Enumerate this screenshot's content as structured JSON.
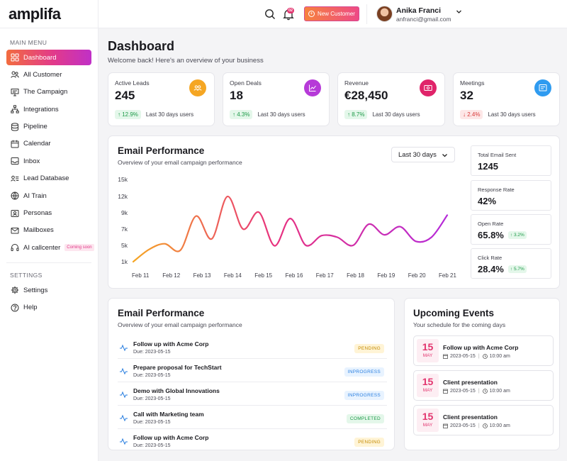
{
  "app": {
    "logo": "amplifa"
  },
  "sidebar": {
    "main_heading": "MAIN MENU",
    "items": [
      {
        "label": "Dashboard",
        "icon": "grid-icon",
        "active": true
      },
      {
        "label": "All Customer",
        "icon": "users-icon"
      },
      {
        "label": "The Campaign",
        "icon": "presentation-icon"
      },
      {
        "label": "Integrations",
        "icon": "hierarchy-icon"
      },
      {
        "label": "Pipeline",
        "icon": "database-icon"
      },
      {
        "label": "Calendar",
        "icon": "calendar-icon"
      },
      {
        "label": "Inbox",
        "icon": "inbox-icon"
      },
      {
        "label": "Lead Database",
        "icon": "user-list-icon"
      },
      {
        "label": "AI Train",
        "icon": "network-icon"
      },
      {
        "label": "Personas",
        "icon": "id-card-icon"
      },
      {
        "label": "Mailboxes",
        "icon": "mail-icon"
      },
      {
        "label": "AI callcenter",
        "icon": "headset-icon",
        "badge": "Coming soon"
      }
    ],
    "settings_heading": "SETTINGS",
    "settings_items": [
      {
        "label": "Settings",
        "icon": "gear-icon"
      },
      {
        "label": "Help",
        "icon": "help-icon"
      }
    ]
  },
  "topbar": {
    "notification_count": "02",
    "new_customer_label": "New Customer",
    "user_name": "Anika Franci",
    "user_email": "anfranci@gmail.com"
  },
  "header": {
    "title": "Dashboard",
    "subtitle": "Welcome back! Here's an overview of your business"
  },
  "stats": [
    {
      "label": "Active Leads",
      "value": "245",
      "change": "12.9%",
      "direction": "up",
      "period": "Last 30 days users",
      "icon": "people-icon",
      "color": "#f5a623"
    },
    {
      "label": "Open Deals",
      "value": "18",
      "change": "4.3%",
      "direction": "up",
      "period": "Last 30 days users",
      "icon": "chart-icon",
      "color": "#b63ad8"
    },
    {
      "label": "Revenue",
      "value": "€28,450",
      "change": "8.7%",
      "direction": "up",
      "period": "Last 30 days users",
      "icon": "money-icon",
      "color": "#e0246a"
    },
    {
      "label": "Meetings",
      "value": "32",
      "change": "2.4%",
      "direction": "down",
      "period": "Last 30 days users",
      "icon": "board-icon",
      "color": "#2f9bf0"
    }
  ],
  "performance": {
    "title": "Email Performance",
    "subtitle": "Overview of your email campaign performance",
    "range": "Last 30 days",
    "metrics": [
      {
        "label": "Total Email Sent",
        "value": "1245",
        "change": ""
      },
      {
        "label": "Response Rate",
        "value": "42%",
        "change": ""
      },
      {
        "label": "Open Rate",
        "value": "65.8%",
        "change": "3.2%"
      },
      {
        "label": "Click Rate",
        "value": "28.4%",
        "change": "5.7%"
      }
    ]
  },
  "chart_data": {
    "type": "line",
    "categories": [
      "Feb 11",
      "Feb 12",
      "Feb 13",
      "Feb 14",
      "Feb 15",
      "Feb 16",
      "Feb 17",
      "Feb 18",
      "Feb 19",
      "Feb 20",
      "Feb 21"
    ],
    "x": [
      0,
      0.5,
      1,
      1.5,
      2,
      2.5,
      3,
      3.5,
      4,
      4.5,
      5,
      5.5,
      6,
      6.5,
      7,
      7.5,
      8,
      8.5,
      9,
      9.5,
      10
    ],
    "values": [
      1000,
      4000,
      5200,
      3800,
      8600,
      5800,
      12000,
      7000,
      9100,
      4900,
      8300,
      5000,
      6200,
      6000,
      5000,
      7600,
      6300,
      7300,
      5500,
      6000,
      8700
    ],
    "y_ticks": [
      "1k",
      "5k",
      "7k",
      "9k",
      "12k",
      "15k"
    ],
    "ylim": [
      1000,
      15000
    ],
    "gradient": [
      "#f5a623",
      "#e8317e",
      "#b52ad9"
    ],
    "grid": false,
    "legend": "none"
  },
  "tasks": {
    "title": "Email Performance",
    "subtitle": "Overview of your email campaign performance",
    "items": [
      {
        "title": "Follow up with Acme Corp",
        "due": "Due: 2023-05-15",
        "status": "PENDING",
        "kind": "pending"
      },
      {
        "title": "Prepare proposal for TechStart",
        "due": "Due: 2023-05-15",
        "status": "INPROGRESS",
        "kind": "inprogress"
      },
      {
        "title": "Demo with Global Innovations",
        "due": "Due: 2023-05-15",
        "status": "INPROGRESS",
        "kind": "inprogress"
      },
      {
        "title": "Call with Marketing team",
        "due": "Due: 2023-05-15",
        "status": "COMPLETED",
        "kind": "completed"
      },
      {
        "title": "Follow up with Acme Corp",
        "due": "Due: 2023-05-15",
        "status": "PENDING",
        "kind": "pending"
      }
    ]
  },
  "events": {
    "title": "Upcoming Events",
    "subtitle": "Your schedule for the coming days",
    "items": [
      {
        "day": "15",
        "month": "MAY",
        "title": "Follow up with Acme Corp",
        "date": "2023-05-15",
        "time": "10:00 am"
      },
      {
        "day": "15",
        "month": "MAY",
        "title": "Client presentation",
        "date": "2023-05-15",
        "time": "10:00 am"
      },
      {
        "day": "15",
        "month": "MAY",
        "title": "Client presentation",
        "date": "2023-05-15",
        "time": "10:00 am"
      }
    ]
  }
}
